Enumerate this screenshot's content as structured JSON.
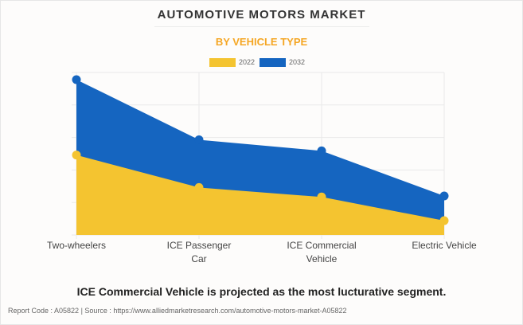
{
  "header": {
    "title": "AUTOMOTIVE MOTORS MARKET",
    "subtitle": "BY VEHICLE TYPE"
  },
  "colors": {
    "series_2022": "#f4c430",
    "series_2032": "#1565c0",
    "subtitle": "#f5a623",
    "grid": "#e9e9e9"
  },
  "chart_data": {
    "type": "area",
    "title": "AUTOMOTIVE MOTORS MARKET",
    "subtitle": "BY VEHICLE TYPE",
    "categories": [
      "Two-wheelers",
      "ICE Passenger Car",
      "ICE Commercial Vehicle",
      "Electric Vehicle"
    ],
    "category_lines": [
      [
        "Two-wheelers"
      ],
      [
        "ICE Passenger",
        "Car"
      ],
      [
        "ICE Commercial",
        "Vehicle"
      ],
      [
        "Electric Vehicle"
      ]
    ],
    "series": [
      {
        "name": "2032",
        "values": [
          4.78,
          2.93,
          2.59,
          1.2
        ]
      },
      {
        "name": "2022",
        "values": [
          2.46,
          1.46,
          1.17,
          0.44
        ]
      }
    ],
    "xlabel": "",
    "ylabel": "",
    "ylim": [
      0,
      5
    ],
    "y_unit": "relative (unlabeled axis, gridline units)",
    "grid": true,
    "legend_position": "top-center",
    "legend": [
      "2022",
      "2032"
    ]
  },
  "legend": {
    "items": [
      {
        "label": "2022",
        "color": "#f4c430"
      },
      {
        "label": "2032",
        "color": "#1565c0"
      }
    ]
  },
  "headline": "ICE Commercial Vehicle is projected as the most lucturative segment.",
  "footer": "Report Code : A05822  |  Source : https://www.alliedmarketresearch.com/automotive-motors-market-A05822"
}
